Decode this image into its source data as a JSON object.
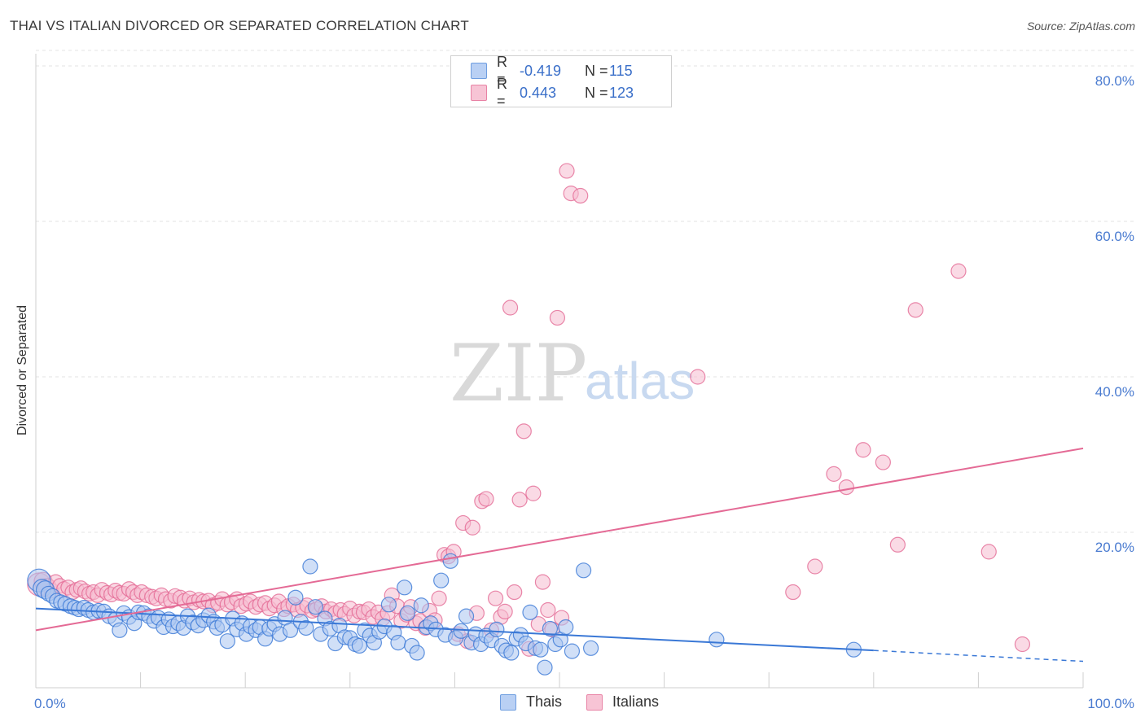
{
  "title": "THAI VS ITALIAN DIVORCED OR SEPARATED CORRELATION CHART",
  "source": "Source: ZipAtlas.com",
  "watermark": {
    "zip": "ZIP",
    "atlas": "atlas"
  },
  "legend": {
    "r_label": "R =",
    "n_label": "N =",
    "rows": [
      {
        "series": "Thais",
        "r": "-0.419",
        "n": "115",
        "color": "#6f9ee0",
        "fill": "#b9d0f4"
      },
      {
        "series": "Italians",
        "r": "0.443",
        "n": "123",
        "color": "#e883a5",
        "fill": "#f7c4d5"
      }
    ]
  },
  "chart_data": {
    "type": "scatter",
    "title": "THAI VS ITALIAN DIVORCED OR SEPARATED CORRELATION CHART",
    "xlabel": "",
    "ylabel": "Divorced or Separated",
    "xlim": [
      0,
      100
    ],
    "ylim": [
      0,
      85
    ],
    "x_ticks": [
      0,
      10,
      20,
      30,
      40,
      50,
      60,
      70,
      80,
      90,
      100
    ],
    "x_tick_labels": [
      "0.0%",
      "100.0%"
    ],
    "y_tick_labels": [
      "20.0%",
      "40.0%",
      "60.0%",
      "80.0%"
    ],
    "y_ticks": [
      20,
      40,
      60,
      80
    ],
    "grid": true,
    "series": [
      {
        "name": "Thais",
        "color": "#3a78d6",
        "fill": "#a9c5f0",
        "trend": {
          "x0": 0,
          "y0": 10.2,
          "x1": 80,
          "y1": 4.8,
          "dashed_to": 100,
          "dashed_y": 3.4
        },
        "points": [
          [
            0.3,
            13.8
          ],
          [
            0.6,
            12.8
          ],
          [
            0.9,
            12.6
          ],
          [
            1.2,
            12.1
          ],
          [
            1.6,
            11.8
          ],
          [
            2.0,
            11.2
          ],
          [
            2.4,
            11.0
          ],
          [
            2.8,
            10.8
          ],
          [
            3.3,
            10.5
          ],
          [
            3.7,
            10.3
          ],
          [
            4.1,
            10.1
          ],
          [
            4.6,
            10.3
          ],
          [
            5.0,
            10.0
          ],
          [
            5.5,
            9.7
          ],
          [
            6.0,
            9.9
          ],
          [
            6.5,
            9.8
          ],
          [
            7.0,
            9.2
          ],
          [
            7.6,
            8.8
          ],
          [
            8.0,
            7.4
          ],
          [
            8.4,
            9.6
          ],
          [
            8.9,
            9.1
          ],
          [
            9.4,
            8.3
          ],
          [
            9.8,
            9.7
          ],
          [
            10.3,
            9.6
          ],
          [
            10.8,
            9.2
          ],
          [
            11.3,
            8.6
          ],
          [
            11.7,
            9.0
          ],
          [
            12.2,
            7.8
          ],
          [
            12.7,
            8.8
          ],
          [
            13.1,
            7.9
          ],
          [
            13.6,
            8.3
          ],
          [
            14.1,
            7.7
          ],
          [
            14.5,
            9.2
          ],
          [
            15.0,
            8.4
          ],
          [
            15.5,
            8.0
          ],
          [
            16.0,
            8.7
          ],
          [
            16.5,
            9.3
          ],
          [
            17.0,
            8.5
          ],
          [
            17.3,
            7.7
          ],
          [
            17.8,
            8.1
          ],
          [
            18.3,
            6.0
          ],
          [
            18.8,
            8.9
          ],
          [
            19.2,
            7.5
          ],
          [
            19.7,
            8.3
          ],
          [
            20.1,
            6.9
          ],
          [
            20.5,
            7.9
          ],
          [
            21.0,
            7.4
          ],
          [
            21.4,
            7.8
          ],
          [
            21.9,
            6.3
          ],
          [
            22.3,
            7.6
          ],
          [
            22.8,
            8.2
          ],
          [
            23.3,
            6.9
          ],
          [
            23.8,
            9.0
          ],
          [
            24.3,
            7.4
          ],
          [
            24.8,
            11.6
          ],
          [
            25.3,
            8.5
          ],
          [
            25.8,
            7.7
          ],
          [
            26.2,
            15.6
          ],
          [
            26.7,
            10.4
          ],
          [
            27.2,
            6.9
          ],
          [
            27.6,
            8.9
          ],
          [
            28.1,
            7.6
          ],
          [
            28.6,
            5.7
          ],
          [
            29.0,
            8.0
          ],
          [
            29.5,
            6.5
          ],
          [
            30.0,
            6.4
          ],
          [
            30.5,
            5.6
          ],
          [
            30.9,
            5.4
          ],
          [
            31.4,
            7.4
          ],
          [
            31.9,
            6.7
          ],
          [
            32.3,
            5.8
          ],
          [
            32.8,
            7.2
          ],
          [
            33.3,
            7.9
          ],
          [
            33.7,
            10.7
          ],
          [
            34.2,
            7.1
          ],
          [
            34.6,
            5.8
          ],
          [
            35.2,
            12.9
          ],
          [
            35.5,
            9.6
          ],
          [
            35.9,
            5.4
          ],
          [
            36.4,
            4.5
          ],
          [
            36.8,
            10.6
          ],
          [
            37.3,
            7.8
          ],
          [
            37.7,
            8.3
          ],
          [
            38.2,
            7.5
          ],
          [
            38.7,
            13.8
          ],
          [
            39.1,
            6.8
          ],
          [
            39.6,
            16.3
          ],
          [
            40.1,
            6.4
          ],
          [
            40.6,
            7.3
          ],
          [
            41.1,
            9.2
          ],
          [
            41.6,
            5.8
          ],
          [
            42.0,
            6.9
          ],
          [
            42.5,
            5.6
          ],
          [
            43.0,
            6.7
          ],
          [
            43.5,
            6.1
          ],
          [
            44.0,
            7.5
          ],
          [
            44.5,
            5.4
          ],
          [
            44.9,
            4.8
          ],
          [
            45.4,
            4.5
          ],
          [
            45.9,
            6.3
          ],
          [
            46.3,
            6.8
          ],
          [
            46.8,
            5.7
          ],
          [
            47.2,
            9.7
          ],
          [
            47.7,
            5.1
          ],
          [
            48.2,
            4.9
          ],
          [
            48.6,
            2.6
          ],
          [
            49.1,
            7.6
          ],
          [
            49.6,
            5.6
          ],
          [
            50.1,
            6.2
          ],
          [
            50.6,
            7.8
          ],
          [
            51.2,
            4.7
          ],
          [
            52.3,
            15.1
          ],
          [
            53.0,
            5.1
          ],
          [
            65.0,
            6.2
          ],
          [
            78.1,
            4.9
          ]
        ]
      },
      {
        "name": "Italians",
        "color": "#e46a95",
        "fill": "#f6bccf",
        "trend": {
          "x0": 0,
          "y0": 7.4,
          "x1": 100,
          "y1": 30.8
        },
        "points": [
          [
            0.3,
            13.3
          ],
          [
            0.7,
            13.7
          ],
          [
            1.1,
            12.9
          ],
          [
            1.5,
            12.5
          ],
          [
            1.9,
            13.6
          ],
          [
            2.3,
            13.1
          ],
          [
            2.7,
            12.7
          ],
          [
            3.1,
            12.9
          ],
          [
            3.5,
            12.3
          ],
          [
            3.9,
            12.6
          ],
          [
            4.3,
            12.8
          ],
          [
            4.7,
            12.4
          ],
          [
            5.1,
            12.1
          ],
          [
            5.5,
            12.3
          ],
          [
            5.9,
            11.9
          ],
          [
            6.3,
            12.6
          ],
          [
            6.8,
            12.2
          ],
          [
            7.2,
            12.0
          ],
          [
            7.6,
            12.5
          ],
          [
            8.0,
            12.2
          ],
          [
            8.4,
            12.1
          ],
          [
            8.9,
            12.7
          ],
          [
            9.3,
            12.3
          ],
          [
            9.7,
            11.9
          ],
          [
            10.1,
            12.3
          ],
          [
            10.6,
            11.9
          ],
          [
            11.1,
            11.7
          ],
          [
            11.5,
            11.5
          ],
          [
            12.0,
            11.9
          ],
          [
            12.4,
            11.4
          ],
          [
            12.9,
            11.2
          ],
          [
            13.3,
            11.8
          ],
          [
            13.8,
            11.6
          ],
          [
            14.2,
            11.2
          ],
          [
            14.7,
            11.5
          ],
          [
            15.1,
            11.0
          ],
          [
            15.6,
            11.3
          ],
          [
            16.0,
            11.1
          ],
          [
            16.5,
            11.2
          ],
          [
            16.9,
            10.6
          ],
          [
            17.4,
            10.9
          ],
          [
            17.8,
            11.4
          ],
          [
            18.3,
            10.7
          ],
          [
            18.7,
            11.0
          ],
          [
            19.2,
            11.4
          ],
          [
            19.6,
            10.5
          ],
          [
            20.1,
            10.8
          ],
          [
            20.5,
            11.1
          ],
          [
            21.0,
            10.4
          ],
          [
            21.4,
            10.7
          ],
          [
            21.9,
            10.9
          ],
          [
            22.3,
            10.2
          ],
          [
            22.8,
            10.6
          ],
          [
            23.2,
            11.1
          ],
          [
            23.7,
            10.1
          ],
          [
            24.1,
            10.5
          ],
          [
            24.6,
            10.7
          ],
          [
            25.0,
            10.0
          ],
          [
            25.5,
            10.3
          ],
          [
            25.9,
            10.6
          ],
          [
            26.4,
            9.9
          ],
          [
            26.8,
            10.1
          ],
          [
            27.3,
            10.5
          ],
          [
            27.7,
            9.8
          ],
          [
            28.2,
            10.1
          ],
          [
            28.6,
            9.6
          ],
          [
            29.1,
            10.0
          ],
          [
            29.5,
            9.5
          ],
          [
            30.0,
            10.2
          ],
          [
            30.4,
            9.3
          ],
          [
            30.9,
            9.8
          ],
          [
            31.3,
            9.7
          ],
          [
            31.8,
            10.1
          ],
          [
            32.2,
            9.1
          ],
          [
            32.7,
            9.7
          ],
          [
            33.1,
            8.9
          ],
          [
            33.6,
            9.6
          ],
          [
            34.0,
            11.9
          ],
          [
            34.5,
            10.5
          ],
          [
            34.9,
            8.6
          ],
          [
            35.4,
            9.4
          ],
          [
            35.8,
            10.4
          ],
          [
            36.3,
            8.3
          ],
          [
            36.7,
            8.6
          ],
          [
            37.2,
            7.7
          ],
          [
            37.6,
            9.9
          ],
          [
            38.1,
            8.7
          ],
          [
            38.5,
            11.5
          ],
          [
            39.0,
            17.1
          ],
          [
            39.4,
            16.9
          ],
          [
            39.9,
            17.5
          ],
          [
            40.3,
            6.9
          ],
          [
            40.8,
            21.2
          ],
          [
            41.2,
            6.0
          ],
          [
            41.7,
            20.6
          ],
          [
            42.1,
            9.6
          ],
          [
            42.6,
            24.0
          ],
          [
            43.0,
            24.3
          ],
          [
            43.5,
            7.4
          ],
          [
            43.9,
            11.5
          ],
          [
            44.4,
            9.1
          ],
          [
            44.8,
            9.8
          ],
          [
            45.3,
            48.9
          ],
          [
            45.7,
            12.3
          ],
          [
            46.2,
            24.2
          ],
          [
            46.6,
            33.0
          ],
          [
            47.1,
            5.0
          ],
          [
            47.5,
            25.0
          ],
          [
            48.0,
            8.2
          ],
          [
            48.4,
            13.6
          ],
          [
            48.9,
            10.0
          ],
          [
            49.3,
            7.5
          ],
          [
            49.8,
            47.6
          ],
          [
            50.2,
            9.0
          ],
          [
            50.7,
            66.5
          ],
          [
            51.1,
            63.6
          ],
          [
            52.0,
            63.3
          ],
          [
            63.2,
            40.0
          ],
          [
            72.3,
            12.3
          ],
          [
            74.4,
            15.6
          ],
          [
            76.2,
            27.5
          ],
          [
            77.4,
            25.8
          ],
          [
            79.0,
            30.6
          ],
          [
            80.9,
            29.0
          ],
          [
            82.3,
            18.4
          ],
          [
            84.0,
            48.6
          ],
          [
            88.1,
            53.6
          ],
          [
            91.0,
            17.5
          ],
          [
            94.2,
            5.6
          ]
        ]
      }
    ]
  },
  "x_axis": {
    "left_label": "0.0%",
    "right_label": "100.0%"
  },
  "bottom_legend": [
    {
      "label": "Thais"
    },
    {
      "label": "Italians"
    }
  ]
}
